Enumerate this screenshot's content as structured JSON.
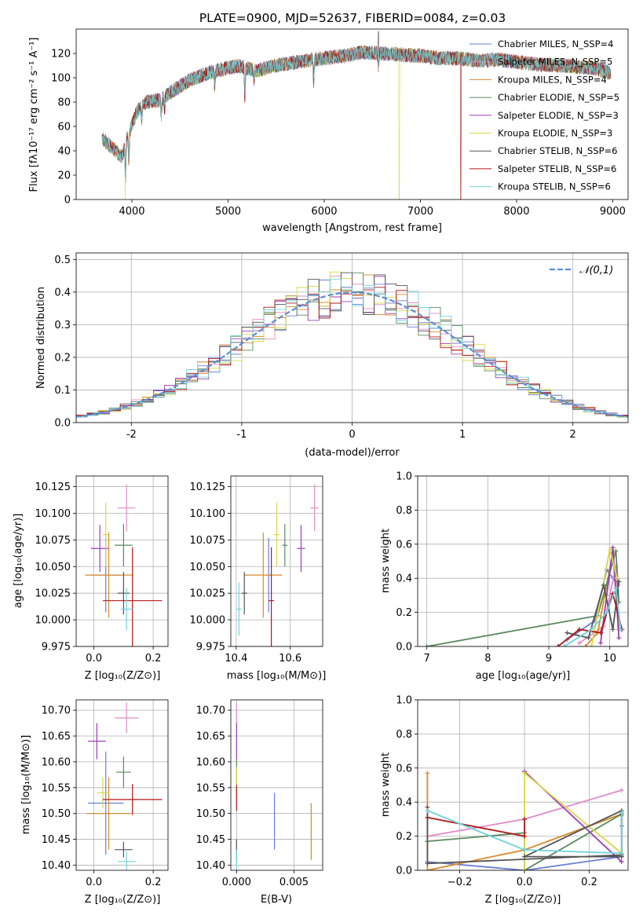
{
  "figure": {
    "title": "PLATE=0900, MJD=52637, FIBERID=0084, z=0.03"
  },
  "colors": {
    "Chabrier MILES": "#6a7fd6",
    "Salpeter MILES": "#e08cc8",
    "Kroupa MILES": "#d98a2a",
    "Chabrier ELODIE": "#5b8a5f",
    "Salpeter ELODIE": "#9b3fb5",
    "Kroupa ELODIE": "#d8d84a",
    "Chabrier STELIB": "#555555",
    "Salpeter STELIB": "#b01818",
    "Kroupa STELIB": "#6fd3d8"
  },
  "chart_data": [
    {
      "id": "spectrum",
      "type": "line",
      "title": "PLATE=0900, MJD=52637, FIBERID=0084, z=0.03",
      "xlabel": "wavelength [Angstrom, rest frame]",
      "ylabel": "Flux [fλ10⁻¹⁷ erg cm⁻² s⁻¹ A⁻¹]",
      "xlim": [
        3420,
        9160
      ],
      "ylim": [
        0,
        140
      ],
      "xticks": [
        4000,
        5000,
        6000,
        7000,
        8000,
        9000
      ],
      "yticks": [
        0,
        20,
        40,
        60,
        80,
        100,
        120
      ],
      "grid": false,
      "legend_position": "top-right",
      "legend": [
        "Chabrier MILES, N_SSP=4",
        "Salpeter MILES, N_SSP=5",
        "Kroupa MILES, N_SSP=4",
        "Chabrier ELODIE, N_SSP=5",
        "Salpeter ELODIE, N_SSP=3",
        "Kroupa ELODIE, N_SSP=3",
        "Chabrier STELIB, N_SSP=6",
        "Salpeter STELIB, N_SSP=6",
        "Kroupa STELIB, N_SSP=6"
      ],
      "continuum": [
        [
          3690,
          50
        ],
        [
          3800,
          42
        ],
        [
          3900,
          35
        ],
        [
          3950,
          50
        ],
        [
          4050,
          72
        ],
        [
          4150,
          80
        ],
        [
          4300,
          82
        ],
        [
          4400,
          88
        ],
        [
          4600,
          98
        ],
        [
          4800,
          104
        ],
        [
          5000,
          108
        ],
        [
          5100,
          110
        ],
        [
          5300,
          106
        ],
        [
          5500,
          110
        ],
        [
          5800,
          114
        ],
        [
          6000,
          116
        ],
        [
          6200,
          118
        ],
        [
          6400,
          121
        ],
        [
          6600,
          120
        ],
        [
          6800,
          119
        ],
        [
          7000,
          118
        ],
        [
          7200,
          116
        ],
        [
          7400,
          116
        ],
        [
          7600,
          114
        ],
        [
          7800,
          115
        ],
        [
          8000,
          113
        ],
        [
          8200,
          111
        ],
        [
          8500,
          110
        ],
        [
          8800,
          108
        ],
        [
          8980,
          104
        ]
      ],
      "features": [
        [
          3933,
          -28
        ],
        [
          3968,
          -22
        ],
        [
          4101,
          -10
        ],
        [
          4305,
          -14
        ],
        [
          4340,
          -10
        ],
        [
          4861,
          -12
        ],
        [
          5175,
          -24
        ],
        [
          5270,
          -8
        ],
        [
          5890,
          -18
        ],
        [
          6563,
          -10
        ]
      ],
      "drops": [
        {
          "series": "Kroupa ELODIE",
          "x": 3930
        },
        {
          "series": "Kroupa ELODIE",
          "x": 6780
        },
        {
          "series": "Salpeter STELIB",
          "x": 7420
        }
      ],
      "spikes": [
        {
          "series": "Chabrier STELIB",
          "x": 6563,
          "y": 138
        }
      ]
    },
    {
      "id": "residuals",
      "type": "histogram",
      "xlabel": "(data-model)/error",
      "ylabel": "Normed distribution",
      "xlim": [
        -2.5,
        2.5
      ],
      "ylim": [
        0,
        0.52
      ],
      "xticks": [
        -2,
        -1,
        0,
        1,
        2
      ],
      "yticks": [
        0.0,
        0.1,
        0.2,
        0.3,
        0.4,
        0.5
      ],
      "grid": true,
      "legend_position": "top-right",
      "bin_width": 0.1,
      "reference_curve": {
        "label": "𝒩(0,1)",
        "mean": 0,
        "sigma": 1,
        "color": "#5b8fd8"
      },
      "bin_start": -2.5,
      "bins_per_series": 50
    },
    {
      "id": "age_vs_Z",
      "type": "errorbar",
      "xlabel": "Z [log₁₀(Z/Z⊙)]",
      "ylabel": "age  [log₁₀(age/yr)]",
      "xlim": [
        -0.06,
        0.25
      ],
      "ylim": [
        9.975,
        10.135
      ],
      "xticks": [
        "0.0",
        "0.2"
      ],
      "xtick_values": [
        0.0,
        0.2
      ],
      "yticks": [
        "9.975",
        "10.000",
        "10.025",
        "10.050",
        "10.075",
        "10.100",
        "10.125"
      ],
      "ytick_values": [
        9.975,
        10.0,
        10.025,
        10.05,
        10.075,
        10.1,
        10.125
      ],
      "grid": true,
      "points": [
        {
          "series": "Chabrier MILES",
          "x": 0.04,
          "y": 10.042,
          "xerr": 0.05,
          "yerr": 0.035
        },
        {
          "series": "Salpeter MILES",
          "x": 0.11,
          "y": 10.105,
          "xerr": 0.03,
          "yerr": 0.022
        },
        {
          "series": "Kroupa MILES",
          "x": 0.05,
          "y": 10.042,
          "xerr": 0.08,
          "yerr": 0.04
        },
        {
          "series": "Chabrier ELODIE",
          "x": 0.1,
          "y": 10.07,
          "xerr": 0.03,
          "yerr": 0.02
        },
        {
          "series": "Salpeter ELODIE",
          "x": 0.02,
          "y": 10.067,
          "xerr": 0.03,
          "yerr": 0.022
        },
        {
          "series": "Kroupa ELODIE",
          "x": 0.04,
          "y": 10.08,
          "xerr": 0.01,
          "yerr": 0.03
        },
        {
          "series": "Chabrier STELIB",
          "x": 0.1,
          "y": 10.025,
          "xerr": 0.02,
          "yerr": 0.02
        },
        {
          "series": "Salpeter STELIB",
          "x": 0.13,
          "y": 10.018,
          "xerr": 0.1,
          "yerr": 0.05
        },
        {
          "series": "Kroupa STELIB",
          "x": 0.11,
          "y": 10.01,
          "xerr": 0.02,
          "yerr": 0.02
        }
      ]
    },
    {
      "id": "age_vs_mass",
      "type": "errorbar",
      "xlabel": "mass [log₁₀(M/M⊙)]",
      "ylabel": "",
      "xlim": [
        10.38,
        10.72
      ],
      "ylim": [
        9.975,
        10.135
      ],
      "xticks": [
        "10.4",
        "10.6"
      ],
      "xtick_values": [
        10.4,
        10.6
      ],
      "yticks": [
        "9.975",
        "10.000",
        "10.025",
        "10.050",
        "10.075",
        "10.100",
        "10.125"
      ],
      "ytick_values": [
        9.975,
        10.0,
        10.025,
        10.05,
        10.075,
        10.1,
        10.125
      ],
      "grid": true,
      "points": [
        {
          "series": "Chabrier MILES",
          "x": 10.52,
          "y": 10.042,
          "xerr": 0.01,
          "yerr": 0.035
        },
        {
          "series": "Salpeter MILES",
          "x": 10.69,
          "y": 10.105,
          "xerr": 0.015,
          "yerr": 0.022
        },
        {
          "series": "Kroupa MILES",
          "x": 10.5,
          "y": 10.042,
          "xerr": 0.07,
          "yerr": 0.04
        },
        {
          "series": "Chabrier ELODIE",
          "x": 10.58,
          "y": 10.07,
          "xerr": 0.01,
          "yerr": 0.02
        },
        {
          "series": "Salpeter ELODIE",
          "x": 10.64,
          "y": 10.067,
          "xerr": 0.015,
          "yerr": 0.022
        },
        {
          "series": "Kroupa ELODIE",
          "x": 10.55,
          "y": 10.08,
          "xerr": 0.01,
          "yerr": 0.03
        },
        {
          "series": "Chabrier STELIB",
          "x": 10.43,
          "y": 10.025,
          "xerr": 0.01,
          "yerr": 0.02
        },
        {
          "series": "Salpeter STELIB",
          "x": 10.53,
          "y": 10.018,
          "xerr": 0.01,
          "yerr": 0.05
        },
        {
          "series": "Kroupa STELIB",
          "x": 10.41,
          "y": 10.01,
          "xerr": 0.01,
          "yerr": 0.025
        }
      ]
    },
    {
      "id": "weight_vs_age",
      "type": "line",
      "xlabel": "age  [log₁₀(age/yr)]",
      "ylabel": "mass weight",
      "xlim": [
        6.85,
        10.3
      ],
      "ylim": [
        0,
        1
      ],
      "xticks": [
        "7",
        "8",
        "9",
        "10"
      ],
      "xtick_values": [
        7,
        8,
        9,
        10
      ],
      "yticks": [
        "0.0",
        "0.2",
        "0.4",
        "0.6",
        "0.8",
        "1.0"
      ],
      "ytick_values": [
        0,
        0.2,
        0.4,
        0.6,
        0.8,
        1.0
      ],
      "grid": true,
      "series": [
        {
          "name": "Chabrier MILES",
          "x": [
            9.3,
            9.75,
            9.95,
            10.13
          ],
          "y": [
            0.04,
            0.15,
            0.45,
            0.36
          ]
        },
        {
          "name": "Salpeter MILES",
          "x": [
            9.5,
            9.9,
            10.0,
            10.1,
            10.15
          ],
          "y": [
            0.02,
            0.12,
            0.3,
            0.47,
            0.1
          ]
        },
        {
          "name": "Kroupa MILES",
          "x": [
            9.6,
            9.8,
            10.05,
            10.15
          ],
          "y": [
            0.0,
            0.08,
            0.55,
            0.1
          ]
        },
        {
          "name": "Chabrier ELODIE",
          "x": [
            7.0,
            9.8,
            10.1,
            10.15
          ],
          "y": [
            0.0,
            0.18,
            0.56,
            0.26
          ]
        },
        {
          "name": "Salpeter ELODIE",
          "x": [
            9.85,
            10.05,
            10.15
          ],
          "y": [
            0.02,
            0.58,
            0.05
          ]
        },
        {
          "name": "Kroupa ELODIE",
          "x": [
            9.7,
            10.0,
            10.12
          ],
          "y": [
            0.0,
            0.57,
            0.4
          ]
        },
        {
          "name": "Chabrier STELIB",
          "x": [
            9.3,
            9.65,
            9.9,
            10.05,
            10.15
          ],
          "y": [
            0.08,
            0.05,
            0.36,
            0.1,
            0.38
          ]
        },
        {
          "name": "Salpeter STELIB",
          "x": [
            9.15,
            9.5,
            9.85,
            10.05,
            10.2
          ],
          "y": [
            0.0,
            0.1,
            0.08,
            0.31,
            0.1
          ]
        },
        {
          "name": "Kroupa STELIB",
          "x": [
            9.25,
            9.7,
            9.95,
            10.1,
            10.18
          ],
          "y": [
            0.0,
            0.1,
            0.2,
            0.34,
            0.1
          ]
        }
      ]
    },
    {
      "id": "mass_vs_Z",
      "type": "errorbar",
      "xlabel": "Z [log₁₀(Z/Z⊙)]",
      "ylabel": "mass [log₁₀(M/M⊙)]",
      "xlim": [
        -0.06,
        0.25
      ],
      "ylim": [
        10.39,
        10.72
      ],
      "xticks": [
        "0.0",
        "0.2"
      ],
      "xtick_values": [
        0.0,
        0.2
      ],
      "yticks": [
        "10.40",
        "10.45",
        "10.50",
        "10.55",
        "10.60",
        "10.65",
        "10.70"
      ],
      "ytick_values": [
        10.4,
        10.45,
        10.5,
        10.55,
        10.6,
        10.65,
        10.7
      ],
      "grid": true,
      "points": [
        {
          "series": "Chabrier MILES",
          "x": 0.04,
          "y": 10.52,
          "xerr": 0.06,
          "yerr": 0.1
        },
        {
          "series": "Salpeter MILES",
          "x": 0.11,
          "y": 10.685,
          "xerr": 0.04,
          "yerr": 0.03
        },
        {
          "series": "Kroupa MILES",
          "x": 0.05,
          "y": 10.5,
          "xerr": 0.075,
          "yerr": 0.07
        },
        {
          "series": "Chabrier ELODIE",
          "x": 0.1,
          "y": 10.58,
          "xerr": 0.025,
          "yerr": 0.03
        },
        {
          "series": "Salpeter ELODIE",
          "x": 0.01,
          "y": 10.64,
          "xerr": 0.03,
          "yerr": 0.035
        },
        {
          "series": "Kroupa ELODIE",
          "x": 0.03,
          "y": 10.54,
          "xerr": 0.02,
          "yerr": 0.03
        },
        {
          "series": "Chabrier STELIB",
          "x": 0.1,
          "y": 10.43,
          "xerr": 0.03,
          "yerr": 0.015
        },
        {
          "series": "Salpeter STELIB",
          "x": 0.13,
          "y": 10.527,
          "xerr": 0.1,
          "yerr": 0.03
        },
        {
          "series": "Kroupa STELIB",
          "x": 0.11,
          "y": 10.407,
          "xerr": 0.03,
          "yerr": 0.02
        }
      ]
    },
    {
      "id": "mass_vs_ebv",
      "type": "errorbar",
      "xlabel": "E(B-V)",
      "ylabel": "",
      "xlim": [
        -0.0005,
        0.0075
      ],
      "ylim": [
        10.39,
        10.72
      ],
      "xticks": [
        "0.000",
        "0.005"
      ],
      "xtick_values": [
        0.0,
        0.005
      ],
      "yticks": [
        "10.40",
        "10.45",
        "10.50",
        "10.55",
        "10.60",
        "10.65",
        "10.70"
      ],
      "ytick_values": [
        10.4,
        10.45,
        10.5,
        10.55,
        10.6,
        10.65,
        10.7
      ],
      "grid": true,
      "points": [
        {
          "series": "Chabrier MILES",
          "x": 0.0033,
          "y": 10.485,
          "xerr": 0,
          "yerr": 0.055
        },
        {
          "series": "Salpeter MILES",
          "x": 0.0,
          "y": 10.69,
          "xerr": 0,
          "yerr": 0.025
        },
        {
          "series": "Kroupa MILES",
          "x": 0.0065,
          "y": 10.465,
          "xerr": 0,
          "yerr": 0.055
        },
        {
          "series": "Chabrier ELODIE",
          "x": 0.0,
          "y": 10.58,
          "xerr": 0,
          "yerr": 0.025
        },
        {
          "series": "Salpeter ELODIE",
          "x": 0.0,
          "y": 10.64,
          "xerr": 0,
          "yerr": 0.035
        },
        {
          "series": "Kroupa ELODIE",
          "x": 0.0,
          "y": 10.56,
          "xerr": 0,
          "yerr": 0.03
        },
        {
          "series": "Chabrier STELIB",
          "x": 0.0,
          "y": 10.43,
          "xerr": 0,
          "yerr": 0.02
        },
        {
          "series": "Salpeter STELIB",
          "x": 0.0,
          "y": 10.53,
          "xerr": 0,
          "yerr": 0.025
        },
        {
          "series": "Kroupa STELIB",
          "x": 0.0,
          "y": 10.41,
          "xerr": 0,
          "yerr": 0.02
        }
      ]
    },
    {
      "id": "weight_vs_Z",
      "type": "line",
      "xlabel": "Z [log₁₀(Z/Z⊙)]",
      "ylabel": "mass weight",
      "xlim": [
        -0.33,
        0.32
      ],
      "ylim": [
        0,
        1
      ],
      "xticks": [
        "−0.2",
        "0.0",
        "0.2"
      ],
      "xtick_values": [
        -0.2,
        0.0,
        0.2
      ],
      "yticks": [
        "0.0",
        "0.2",
        "0.4",
        "0.6",
        "0.8",
        "1.0"
      ],
      "ytick_values": [
        0,
        0.2,
        0.4,
        0.6,
        0.8,
        1.0
      ],
      "grid": true,
      "series": [
        {
          "name": "Chabrier MILES",
          "x": [
            -0.3,
            0.0,
            0.3,
            0.3
          ],
          "y": [
            0.05,
            0.0,
            0.08,
            0.32
          ]
        },
        {
          "name": "Salpeter MILES",
          "x": [
            -0.3,
            0.0,
            0.3
          ],
          "y": [
            0.2,
            0.3,
            0.47
          ]
        },
        {
          "name": "Kroupa MILES",
          "x": [
            -0.3,
            -0.3,
            0.0,
            0.3
          ],
          "y": [
            0.57,
            0.0,
            0.12,
            0.33
          ]
        },
        {
          "name": "Chabrier ELODIE",
          "x": [
            -0.3,
            0.0,
            0.0,
            0.3,
            0.3
          ],
          "y": [
            0.17,
            0.22,
            0.0,
            0.33,
            0.26
          ]
        },
        {
          "name": "Salpeter ELODIE",
          "x": [
            0.0,
            0.3,
            0.0
          ],
          "y": [
            0.58,
            0.05,
            0.58
          ]
        },
        {
          "name": "Kroupa ELODIE",
          "x": [
            0.0,
            0.0,
            0.3
          ],
          "y": [
            0.0,
            0.57,
            0.1
          ]
        },
        {
          "name": "Chabrier STELIB",
          "x": [
            -0.3,
            -0.3,
            0.3,
            0.3,
            0.0,
            0.3
          ],
          "y": [
            0.37,
            0.04,
            0.09,
            0.35,
            0.08,
            0.08
          ]
        },
        {
          "name": "Salpeter STELIB",
          "x": [
            -0.3,
            0.0,
            0.0
          ],
          "y": [
            0.31,
            0.2,
            0.3
          ]
        },
        {
          "name": "Kroupa STELIB",
          "x": [
            -0.3,
            0.0,
            0.3,
            0.3
          ],
          "y": [
            0.35,
            0.12,
            0.1,
            0.34
          ]
        }
      ]
    }
  ]
}
